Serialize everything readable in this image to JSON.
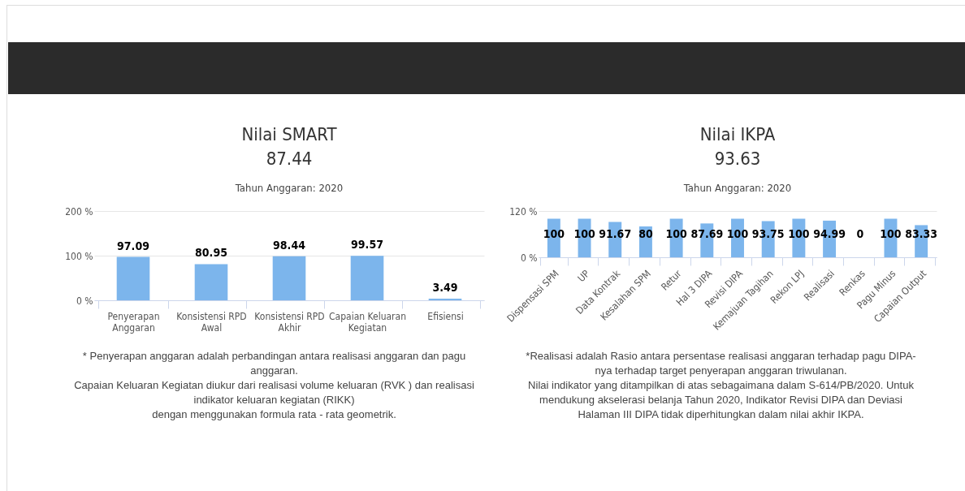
{
  "chart_data": [
    {
      "type": "bar",
      "title": "Nilai SMART",
      "subtitle": "87.44",
      "categories": [
        "Penyerapan Anggaran",
        "Konsistensi RPD Awal",
        "Konsistensi RPD Akhir",
        "Capaian Keluaran Kegiatan",
        "Efisiensi"
      ],
      "values": [
        97.09,
        80.95,
        98.44,
        99.57,
        3.49
      ],
      "color": "#7cb5ec",
      "ylim": [
        0,
        200
      ],
      "yticks": [
        {
          "value": 0,
          "label": "0 %"
        },
        {
          "value": 100,
          "label": "100 %"
        },
        {
          "value": 200,
          "label": "200 %"
        }
      ],
      "grid": "y",
      "data_labels": true,
      "annotations": [
        "Tahun Anggaran: 2020",
        "* Penyerapan anggaran adalah perbandingan antara realisasi anggaran dan pagu anggaran.",
        "Capaian Keluaran Kegiatan diukur dari realisasi volume keluaran (RVK ) dan realisasi indikator keluaran kegiatan (RIKK)",
        "dengan menggunakan formula rata - rata geometrik."
      ]
    },
    {
      "type": "bar",
      "title": "Nilai IKPA",
      "subtitle": "93.63",
      "categories": [
        "Dispensasi SPM",
        "UP",
        "Data Kontrak",
        "Kesalahan SPM",
        "Retur",
        "Hal 3 DIPA",
        "Revisi DIPA",
        "Kemajuan Tagihan",
        "Rekon LPJ",
        "Realisasi",
        "Renkas",
        "Pagu Minus",
        "Capaian Output"
      ],
      "values": [
        100,
        100,
        91.67,
        80,
        100,
        87.69,
        100,
        93.75,
        100,
        94.99,
        0,
        100,
        83.33
      ],
      "color": "#7cb5ec",
      "ylim": [
        0,
        120
      ],
      "yticks": [
        {
          "value": 0,
          "label": "0 %"
        },
        {
          "value": 120,
          "label": "120 %"
        }
      ],
      "grid": "y",
      "data_labels": true,
      "annotations": [
        "Tahun Anggaran: 2020",
        "*Realisasi adalah Rasio antara persentase realisasi anggaran terhadap pagu DIPA-nya terhadap target penyerapan anggaran triwulanan.",
        "Nilai indikator yang ditampilkan di atas sebagaimana dalam S-614/PB/2020. Untuk mendukung akselerasi belanja Tahun 2020, Indikator Revisi DIPA dan Deviasi Halaman III DIPA tidak diperhitungkan dalam nilai akhir IKPA."
      ]
    }
  ]
}
